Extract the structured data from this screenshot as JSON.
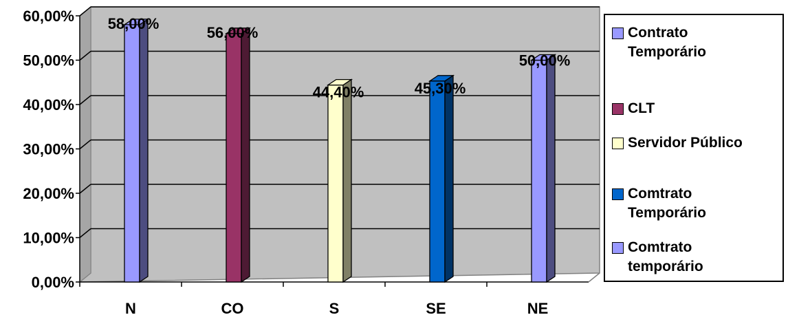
{
  "chart_data": {
    "type": "bar",
    "categories": [
      "N",
      "CO",
      "S",
      "SE",
      "NE"
    ],
    "values": [
      58.0,
      56.0,
      44.4,
      45.3,
      50.0
    ],
    "data_labels": [
      "58,00%",
      "56,00%",
      "44,40%",
      "45,30%",
      "50,00%"
    ],
    "bar_series_index": [
      0,
      1,
      2,
      3,
      4
    ],
    "y_ticks": [
      "0,00%",
      "10,00%",
      "20,00%",
      "30,00%",
      "40,00%",
      "50,00%",
      "60,00%"
    ],
    "ylim": [
      0,
      60
    ],
    "grid": true,
    "legend_position": "right",
    "series": [
      {
        "name": "Contrato Temporário",
        "color": "#9999ff",
        "side_color": "#4d4d80"
      },
      {
        "name": "CLT",
        "color": "#993366",
        "side_color": "#4d1a33"
      },
      {
        "name": "Servidor Público",
        "color": "#ffffcc",
        "side_color": "#808066"
      },
      {
        "name": "Comtrato Temporário",
        "color": "#0066cc",
        "side_color": "#003366"
      },
      {
        "name": "Comtrato temporário",
        "color": "#9999ff",
        "side_color": "#4d4d80"
      }
    ],
    "plot_background": "#c0c0c0"
  }
}
